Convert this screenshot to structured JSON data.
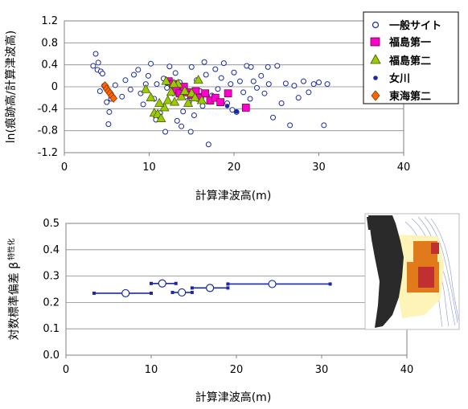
{
  "colors": {
    "general": "#1a2aa0",
    "fukushima1": "#ff00cc",
    "fukushima2": "#99cc00",
    "onagawa": "#1a2aa0",
    "tokai2": "#ff6600",
    "errorbar": "#1a2aa0",
    "grid": "#888888",
    "axis": "#808080"
  },
  "chart_data": [
    {
      "type": "scatter",
      "xlabel": "計算津波高(m)",
      "ylabel": "ln(痕跡高/計算津波高)",
      "xlim": [
        0,
        40
      ],
      "ylim": [
        -1.2,
        1.2
      ],
      "xticks": [
        "0",
        "10",
        "20",
        "30",
        "40"
      ],
      "yticks": [
        "1.2",
        "0.8",
        "0.4",
        "0",
        "-0.4",
        "-0.8",
        "-1.2"
      ],
      "grid": "horizontal",
      "legend_position": "right",
      "series": [
        {
          "name": "一般サイト",
          "marker": "open-circle",
          "points": [
            [
              3.4,
              0.38
            ],
            [
              3.7,
              0.6
            ],
            [
              3.9,
              0.31
            ],
            [
              4.0,
              0.44
            ],
            [
              4.3,
              0.28
            ],
            [
              4.5,
              0.24
            ],
            [
              4.2,
              -0.08
            ],
            [
              4.7,
              0.02
            ],
            [
              5.0,
              -0.28
            ],
            [
              5.3,
              -0.46
            ],
            [
              5.5,
              -0.22
            ],
            [
              5.2,
              -0.68
            ],
            [
              6.0,
              0.03
            ],
            [
              6.8,
              -0.18
            ],
            [
              7.2,
              0.12
            ],
            [
              7.8,
              -0.05
            ],
            [
              8.2,
              0.22
            ],
            [
              8.7,
              0.31
            ],
            [
              9.0,
              -0.12
            ],
            [
              9.3,
              -0.32
            ],
            [
              9.6,
              0.05
            ],
            [
              9.9,
              0.2
            ],
            [
              10.2,
              0.42
            ],
            [
              10.6,
              -0.22
            ],
            [
              10.9,
              0.05
            ],
            [
              11.3,
              -0.48
            ],
            [
              11.7,
              0.15
            ],
            [
              12.1,
              -0.02
            ],
            [
              12.4,
              0.37
            ],
            [
              12.8,
              -0.12
            ],
            [
              13.1,
              0.25
            ],
            [
              13.3,
              -0.62
            ],
            [
              13.6,
              0.08
            ],
            [
              14.0,
              -0.45
            ],
            [
              14.3,
              -0.18
            ],
            [
              14.7,
              -0.28
            ],
            [
              15.0,
              0.36
            ],
            [
              15.3,
              -0.52
            ],
            [
              15.6,
              0.12
            ],
            [
              16.0,
              -0.08
            ],
            [
              16.3,
              -0.35
            ],
            [
              16.7,
              0.22
            ],
            [
              17.0,
              -1.05
            ],
            [
              17.4,
              -0.16
            ],
            [
              17.8,
              0.32
            ],
            [
              18.1,
              -0.04
            ],
            [
              18.5,
              0.16
            ],
            [
              18.8,
              0.43
            ],
            [
              19.2,
              -0.3
            ],
            [
              19.6,
              0.05
            ],
            [
              20.0,
              0.26
            ],
            [
              20.3,
              -0.46
            ],
            [
              20.7,
              0.1
            ],
            [
              21.1,
              -0.1
            ],
            [
              21.5,
              0.38
            ],
            [
              21.9,
              -0.22
            ],
            [
              22.3,
              0.1
            ],
            [
              22.7,
              -0.02
            ],
            [
              23.2,
              0.2
            ],
            [
              23.6,
              -0.12
            ],
            [
              24.1,
              0.05
            ],
            [
              24.6,
              -0.56
            ],
            [
              25.1,
              0.38
            ],
            [
              25.6,
              -0.3
            ],
            [
              26.1,
              0.06
            ],
            [
              26.6,
              -0.7
            ],
            [
              27.1,
              0.02
            ],
            [
              27.6,
              -0.2
            ],
            [
              28.2,
              0.1
            ],
            [
              28.8,
              -0.1
            ],
            [
              29.4,
              0.05
            ],
            [
              30.0,
              0.08
            ],
            [
              30.6,
              -0.7
            ],
            [
              31.0,
              0.05
            ],
            [
              11.9,
              -0.82
            ],
            [
              10.8,
              -0.6
            ],
            [
              13.8,
              -0.72
            ],
            [
              16.5,
              0.45
            ],
            [
              19.8,
              -0.42
            ],
            [
              22.0,
              0.36
            ],
            [
              24.0,
              0.36
            ],
            [
              14.9,
              -0.82
            ]
          ]
        },
        {
          "name": "福島第一",
          "marker": "filled-square",
          "points": [
            [
              12.3,
              0.1
            ],
            [
              12.8,
              0.05
            ],
            [
              13.2,
              -0.05
            ],
            [
              13.6,
              -0.12
            ],
            [
              14.1,
              0.0
            ],
            [
              14.5,
              -0.1
            ],
            [
              15.0,
              -0.15
            ],
            [
              15.5,
              -0.08
            ],
            [
              16.0,
              -0.2
            ],
            [
              16.6,
              -0.12
            ],
            [
              17.2,
              -0.25
            ],
            [
              17.8,
              -0.2
            ],
            [
              18.4,
              -0.28
            ],
            [
              19.3,
              -0.12
            ],
            [
              21.4,
              -0.38
            ]
          ]
        },
        {
          "name": "福島第二",
          "marker": "filled-triangle",
          "points": [
            [
              9.6,
              -0.05
            ],
            [
              10.2,
              -0.2
            ],
            [
              10.6,
              -0.48
            ],
            [
              11.0,
              -0.5
            ],
            [
              11.4,
              -0.58
            ],
            [
              11.8,
              -0.38
            ],
            [
              11.2,
              -0.3
            ],
            [
              12.2,
              -0.25
            ],
            [
              12.6,
              -0.1
            ],
            [
              13.0,
              -0.28
            ],
            [
              13.4,
              0.05
            ],
            [
              13.8,
              -0.18
            ],
            [
              14.2,
              -0.08
            ],
            [
              14.6,
              -0.3
            ],
            [
              15.0,
              -0.12
            ],
            [
              15.4,
              -0.2
            ],
            [
              15.8,
              0.12
            ],
            [
              16.2,
              -0.25
            ],
            [
              12.0,
              0.1
            ],
            [
              12.9,
              0.05
            ]
          ]
        },
        {
          "name": "女川",
          "marker": "filled-dot",
          "points": [
            [
              19.2,
              -0.35
            ],
            [
              20.3,
              -0.45
            ]
          ]
        },
        {
          "name": "東海第二",
          "marker": "filled-diamond",
          "points": [
            [
              4.8,
              0.02
            ],
            [
              5.0,
              -0.04
            ],
            [
              5.2,
              -0.08
            ],
            [
              5.4,
              -0.12
            ],
            [
              5.6,
              -0.17
            ],
            [
              5.8,
              -0.21
            ]
          ]
        }
      ]
    },
    {
      "type": "errorbar",
      "xlabel": "計算津波高(m)",
      "ylabel": "対数標準偏差 β",
      "ylabel_sub": "特性化",
      "xlim": [
        0,
        40
      ],
      "ylim": [
        0,
        0.5
      ],
      "xticks": [
        "0",
        "10",
        "20",
        "30",
        "40"
      ],
      "yticks": [
        "0.5",
        "0.4",
        "0.3",
        "0.2",
        "0.1",
        "0.0"
      ],
      "grid": "horizontal",
      "segments": [
        {
          "xmin": 3.3,
          "xmax": 10.0,
          "center": 7.0,
          "value": 0.235
        },
        {
          "xmin": 10.0,
          "xmax": 12.9,
          "center": 11.3,
          "value": 0.272
        },
        {
          "xmin": 12.5,
          "xmax": 14.8,
          "center": 13.6,
          "value": 0.238
        },
        {
          "xmin": 14.8,
          "xmax": 19.0,
          "center": 16.9,
          "value": 0.255
        },
        {
          "xmin": 19.0,
          "xmax": 31.0,
          "center": 24.2,
          "value": 0.27
        }
      ]
    }
  ],
  "map_inset": {
    "description_icon": "japan-coast-map-icon"
  }
}
